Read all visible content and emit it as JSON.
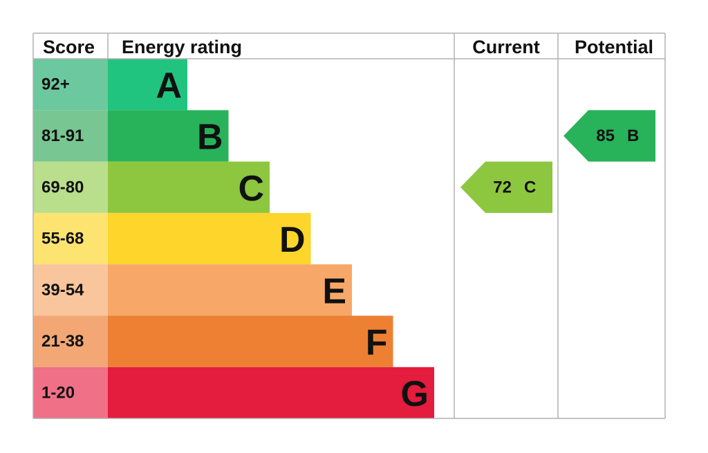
{
  "header": {
    "score": "Score",
    "rating": "Energy rating",
    "current": "Current",
    "potential": "Potential"
  },
  "bands": [
    {
      "score": "92+",
      "letter": "A",
      "color": "#21c47f",
      "score_color": "#6cc89f"
    },
    {
      "score": "81-91",
      "letter": "B",
      "color": "#28b35a",
      "score_color": "#78c692"
    },
    {
      "score": "69-80",
      "letter": "C",
      "color": "#8dc73f",
      "score_color": "#b9de8c"
    },
    {
      "score": "55-68",
      "letter": "D",
      "color": "#fdd52b",
      "score_color": "#fde470"
    },
    {
      "score": "39-54",
      "letter": "E",
      "color": "#f7a869",
      "score_color": "#f9c59c"
    },
    {
      "score": "21-38",
      "letter": "F",
      "color": "#ed8033",
      "score_color": "#f2a774"
    },
    {
      "score": "1-20",
      "letter": "G",
      "color": "#e41c3d",
      "score_color": "#ef7087"
    }
  ],
  "current": {
    "value": 72,
    "letter": "C"
  },
  "potential": {
    "value": 85,
    "letter": "B"
  }
}
